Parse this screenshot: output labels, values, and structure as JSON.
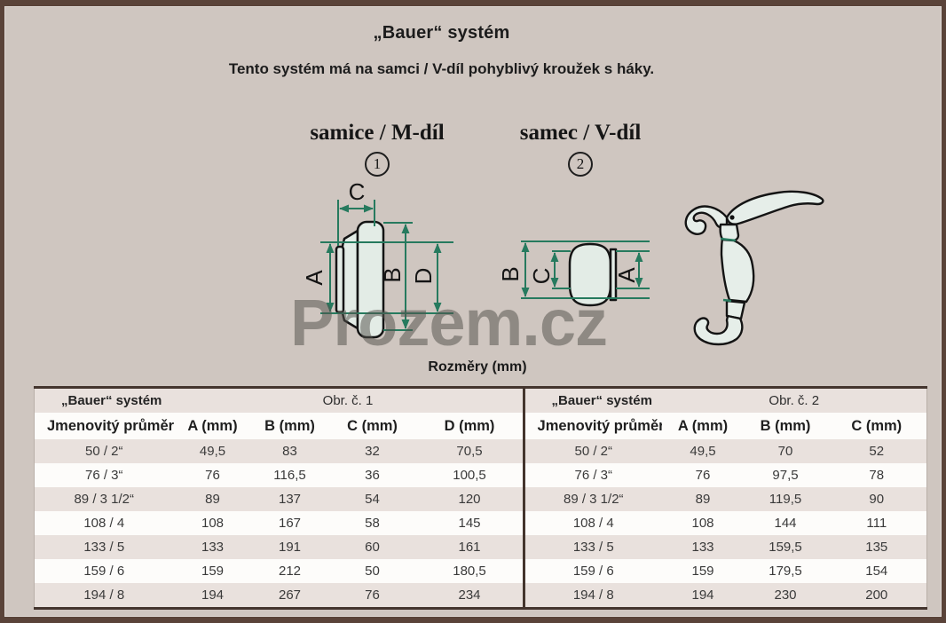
{
  "header": {
    "title": "„Bauer“ systém",
    "subtitle": "Tento systém má na samci / V-díl pohyblivý kroužek s háky.",
    "watermark": "Prozem.cz",
    "dimensions_label": "Rozměry (mm)"
  },
  "figures": [
    {
      "label": "samice / M-díl",
      "number": "1"
    },
    {
      "label": "samec / V-díl",
      "number": "2"
    }
  ],
  "diagrams": {
    "m_dil": {
      "dims": [
        "C",
        "A",
        "B",
        "D"
      ]
    },
    "v_dil": {
      "dims": [
        "B",
        "C",
        "A"
      ]
    }
  },
  "colors": {
    "page_background": "#cfc6c0",
    "page_border": "#5a4339",
    "dimension_accent": "#267a5e",
    "row_shade": "#e9e1dd"
  },
  "tables": [
    {
      "system_label": "„Bauer“ systém",
      "figure_ref": "Obr. č. 1",
      "columns": [
        "Jmenovitý průměr",
        "A (mm)",
        "B (mm)",
        "C (mm)",
        "D (mm)"
      ],
      "rows": [
        [
          "50 / 2“",
          "49,5",
          "83",
          "32",
          "70,5"
        ],
        [
          "76 / 3“",
          "76",
          "116,5",
          "36",
          "100,5"
        ],
        [
          "89 / 3 1/2“",
          "89",
          "137",
          "54",
          "120"
        ],
        [
          "108 / 4",
          "108",
          "167",
          "58",
          "145"
        ],
        [
          "133 / 5",
          "133",
          "191",
          "60",
          "161"
        ],
        [
          "159 / 6",
          "159",
          "212",
          "50",
          "180,5"
        ],
        [
          "194 / 8",
          "194",
          "267",
          "76",
          "234"
        ]
      ]
    },
    {
      "system_label": "„Bauer“ systém",
      "figure_ref": "Obr. č. 2",
      "columns": [
        "Jmenovitý průměr",
        "A (mm)",
        "B (mm)",
        "C (mm)"
      ],
      "rows": [
        [
          "50 / 2“",
          "49,5",
          "70",
          "52"
        ],
        [
          "76 / 3“",
          "76",
          "97,5",
          "78"
        ],
        [
          "89 / 3 1/2“",
          "89",
          "119,5",
          "90"
        ],
        [
          "108 / 4",
          "108",
          "144",
          "111"
        ],
        [
          "133 / 5",
          "133",
          "159,5",
          "135"
        ],
        [
          "159 / 6",
          "159",
          "179,5",
          "154"
        ],
        [
          "194 / 8",
          "194",
          "230",
          "200"
        ]
      ]
    }
  ]
}
